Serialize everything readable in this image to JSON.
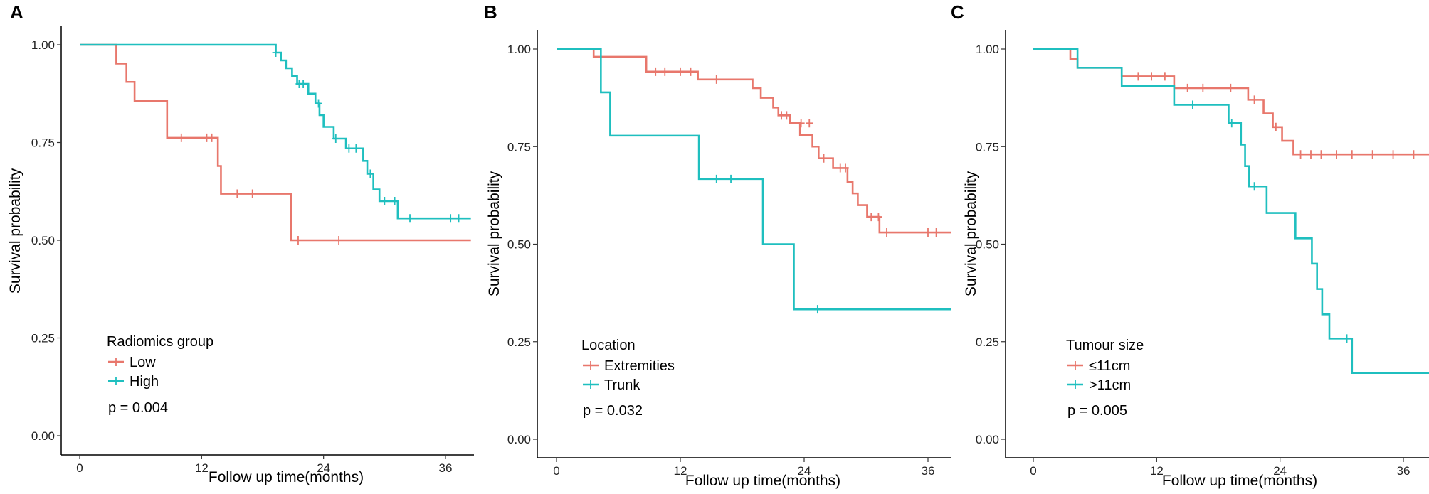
{
  "chart_data": [
    {
      "panel_label": "A",
      "type": "line",
      "subtype": "kaplan-meier",
      "xlabel": "Follow up time(months)",
      "ylabel": "Survival probability",
      "xlim": [
        0,
        38.5
      ],
      "ylim": [
        0,
        1
      ],
      "xticks": [
        0,
        12,
        24,
        36
      ],
      "xtick_labels": [
        "0",
        "12",
        "24",
        "36"
      ],
      "yticks": [
        0,
        0.25,
        0.5,
        0.75,
        1
      ],
      "ytick_labels": [
        "0.00",
        "0.25",
        "0.50",
        "0.75",
        "1.00"
      ],
      "legend_title": "Radiomics group",
      "p_value": "p = 0.004",
      "series": [
        {
          "name": "Low",
          "color": "#E8776C",
          "steps": [
            [
              0,
              1.0
            ],
            [
              3.6,
              0.952
            ],
            [
              4.6,
              0.905
            ],
            [
              5.4,
              0.857
            ],
            [
              8.6,
              0.762
            ],
            [
              13.6,
              0.69
            ],
            [
              13.9,
              0.619
            ],
            [
              20.8,
              0.5
            ],
            [
              38.5,
              0.5
            ]
          ],
          "censor": [
            [
              10,
              0.762
            ],
            [
              12.5,
              0.762
            ],
            [
              13,
              0.762
            ],
            [
              15.5,
              0.619
            ],
            [
              17,
              0.619
            ],
            [
              21.5,
              0.5
            ],
            [
              25.5,
              0.5
            ]
          ]
        },
        {
          "name": "High",
          "color": "#1FBFBF",
          "steps": [
            [
              0,
              1.0
            ],
            [
              19.3,
              0.98
            ],
            [
              19.8,
              0.96
            ],
            [
              20.3,
              0.94
            ],
            [
              20.9,
              0.92
            ],
            [
              21.4,
              0.9
            ],
            [
              22.5,
              0.875
            ],
            [
              23.2,
              0.85
            ],
            [
              23.6,
              0.82
            ],
            [
              24,
              0.79
            ],
            [
              25,
              0.76
            ],
            [
              26.2,
              0.735
            ],
            [
              27.9,
              0.703
            ],
            [
              28.3,
              0.67
            ],
            [
              28.9,
              0.63
            ],
            [
              29.5,
              0.6
            ],
            [
              31.3,
              0.556
            ],
            [
              38.5,
              0.556
            ]
          ],
          "censor": [
            [
              19.3,
              0.98
            ],
            [
              21.6,
              0.9
            ],
            [
              22,
              0.9
            ],
            [
              23.5,
              0.85
            ],
            [
              25.2,
              0.76
            ],
            [
              26.5,
              0.735
            ],
            [
              27.2,
              0.735
            ],
            [
              28.6,
              0.67
            ],
            [
              30,
              0.6
            ],
            [
              31,
              0.6
            ],
            [
              32.5,
              0.556
            ],
            [
              36.5,
              0.556
            ],
            [
              37.3,
              0.556
            ]
          ]
        }
      ]
    },
    {
      "panel_label": "B",
      "type": "line",
      "subtype": "kaplan-meier",
      "xlabel": "Follow up time(months)",
      "ylabel": "Survival probability",
      "xlim": [
        0,
        38.5
      ],
      "ylim": [
        0,
        1
      ],
      "xticks": [
        0,
        12,
        24,
        36
      ],
      "xtick_labels": [
        "0",
        "12",
        "24",
        "36"
      ],
      "yticks": [
        0,
        0.25,
        0.5,
        0.75,
        1
      ],
      "ytick_labels": [
        "0.00",
        "0.25",
        "0.50",
        "0.75",
        "1.00"
      ],
      "legend_title": "Location",
      "p_value": "p = 0.032",
      "series": [
        {
          "name": "Extremities",
          "color": "#E8776C",
          "steps": [
            [
              0,
              1.0
            ],
            [
              3.6,
              0.98
            ],
            [
              8.7,
              0.942
            ],
            [
              13.7,
              0.922
            ],
            [
              19,
              0.9
            ],
            [
              19.8,
              0.875
            ],
            [
              21,
              0.85
            ],
            [
              21.5,
              0.83
            ],
            [
              22.6,
              0.81
            ],
            [
              23.6,
              0.78
            ],
            [
              24.8,
              0.75
            ],
            [
              25.4,
              0.72
            ],
            [
              26.8,
              0.695
            ],
            [
              28.2,
              0.66
            ],
            [
              28.7,
              0.63
            ],
            [
              29.2,
              0.6
            ],
            [
              30.1,
              0.57
            ],
            [
              31.3,
              0.53
            ],
            [
              38.5,
              0.53
            ]
          ],
          "censor": [
            [
              9.6,
              0.942
            ],
            [
              10.5,
              0.942
            ],
            [
              12,
              0.942
            ],
            [
              13,
              0.942
            ],
            [
              15.5,
              0.922
            ],
            [
              21.8,
              0.83
            ],
            [
              22.3,
              0.83
            ],
            [
              23.7,
              0.81
            ],
            [
              24.5,
              0.81
            ],
            [
              25.9,
              0.72
            ],
            [
              27.5,
              0.695
            ],
            [
              28,
              0.695
            ],
            [
              30.5,
              0.57
            ],
            [
              31.2,
              0.57
            ],
            [
              32,
              0.53
            ],
            [
              36,
              0.53
            ],
            [
              36.8,
              0.53
            ]
          ]
        },
        {
          "name": "Trunk",
          "color": "#1FBFBF",
          "steps": [
            [
              0,
              1.0
            ],
            [
              4.3,
              0.889
            ],
            [
              5.2,
              0.778
            ],
            [
              13.8,
              0.667
            ],
            [
              20,
              0.5
            ],
            [
              23,
              0.333
            ],
            [
              38.5,
              0.333
            ]
          ],
          "censor": [
            [
              15.5,
              0.667
            ],
            [
              16.9,
              0.667
            ],
            [
              25.3,
              0.333
            ]
          ]
        }
      ]
    },
    {
      "panel_label": "C",
      "type": "line",
      "subtype": "kaplan-meier",
      "xlabel": "Follow up time(months)",
      "ylabel": "Survival probability",
      "xlim": [
        0,
        38.5
      ],
      "ylim": [
        0,
        1
      ],
      "xticks": [
        0,
        12,
        24,
        36
      ],
      "xtick_labels": [
        "0",
        "12",
        "24",
        "36"
      ],
      "yticks": [
        0,
        0.25,
        0.5,
        0.75,
        1
      ],
      "ytick_labels": [
        "0.00",
        "0.25",
        "0.50",
        "0.75",
        "1.00"
      ],
      "legend_title": "Tumour size",
      "p_value": "p = 0.005",
      "series": [
        {
          "name": "≤11cm",
          "color": "#E8776C",
          "steps": [
            [
              0,
              1.0
            ],
            [
              3.6,
              0.975
            ],
            [
              4.3,
              0.952
            ],
            [
              8.6,
              0.93
            ],
            [
              13.7,
              0.9
            ],
            [
              20.9,
              0.87
            ],
            [
              22.4,
              0.835
            ],
            [
              23.3,
              0.8
            ],
            [
              24.2,
              0.765
            ],
            [
              25.3,
              0.73
            ],
            [
              38.5,
              0.73
            ]
          ],
          "censor": [
            [
              10.2,
              0.93
            ],
            [
              11.5,
              0.93
            ],
            [
              12.8,
              0.93
            ],
            [
              15,
              0.9
            ],
            [
              16.5,
              0.9
            ],
            [
              19.2,
              0.9
            ],
            [
              21.5,
              0.87
            ],
            [
              23.6,
              0.8
            ],
            [
              26,
              0.73
            ],
            [
              27,
              0.73
            ],
            [
              28,
              0.73
            ],
            [
              29.5,
              0.73
            ],
            [
              31,
              0.73
            ],
            [
              33,
              0.73
            ],
            [
              35,
              0.73
            ],
            [
              37,
              0.73
            ]
          ]
        },
        {
          "name": ">11cm",
          "color": "#1FBFBF",
          "steps": [
            [
              0,
              1.0
            ],
            [
              4.3,
              0.952
            ],
            [
              8.6,
              0.905
            ],
            [
              13.7,
              0.857
            ],
            [
              19,
              0.81
            ],
            [
              20.2,
              0.755
            ],
            [
              20.6,
              0.7
            ],
            [
              21,
              0.648
            ],
            [
              22.7,
              0.58
            ],
            [
              25.5,
              0.515
            ],
            [
              27.1,
              0.45
            ],
            [
              27.6,
              0.385
            ],
            [
              28.1,
              0.32
            ],
            [
              28.8,
              0.258
            ],
            [
              31,
              0.17
            ],
            [
              38.5,
              0.17
            ]
          ],
          "censor": [
            [
              15.5,
              0.857
            ],
            [
              19.3,
              0.81
            ],
            [
              21.5,
              0.648
            ],
            [
              30.5,
              0.258
            ]
          ]
        }
      ]
    }
  ]
}
